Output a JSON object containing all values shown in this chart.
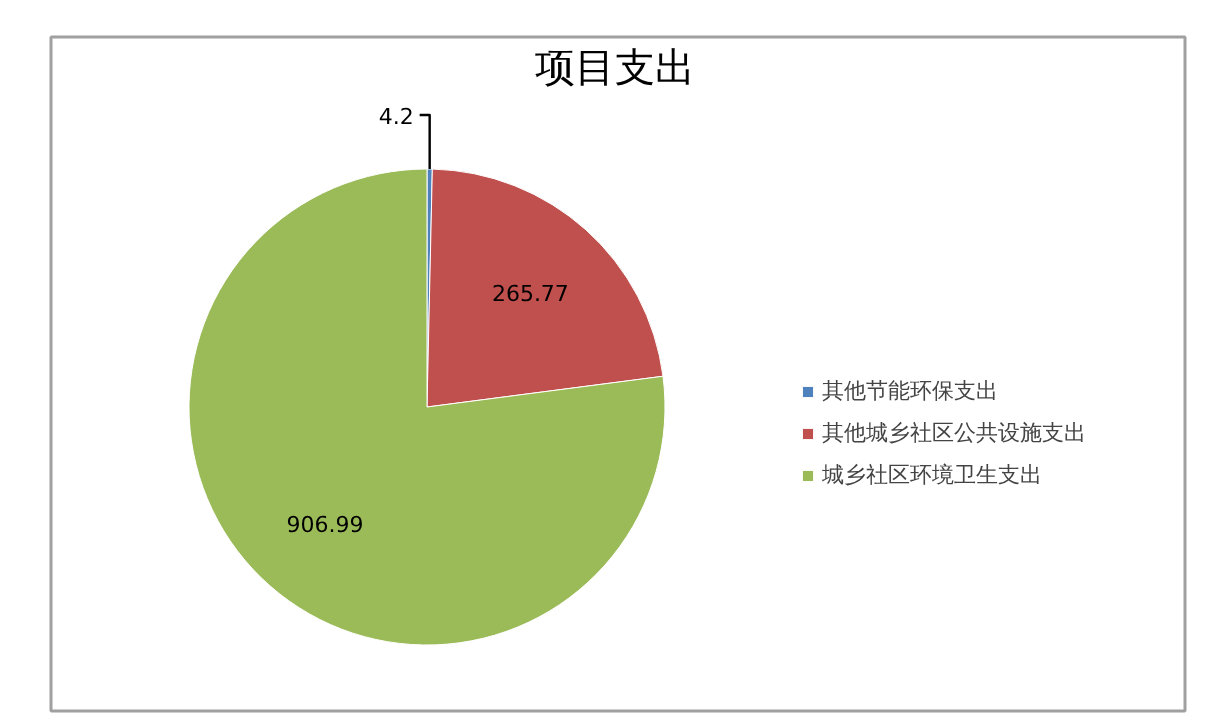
{
  "chart_data": {
    "type": "pie",
    "title": "项目支出",
    "categories": [
      "其他节能环保支出",
      "其他城乡社区公共设施支出",
      "城乡社区环境卫生支出"
    ],
    "values": [
      4.2,
      265.77,
      906.99
    ],
    "colors": [
      "#4f81bd",
      "#c0504d",
      "#9bbb59"
    ],
    "data_labels": true,
    "legend": "right"
  }
}
